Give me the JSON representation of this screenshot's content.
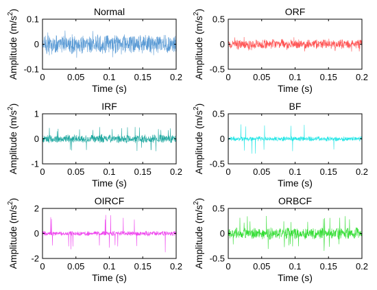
{
  "chart_data": [
    {
      "type": "line",
      "title": "Normal",
      "xlabel": "Time (s)",
      "ylabel": "Amplitude (m/s",
      "ylabel_sup": "2",
      "ylabel_close": ")",
      "xlim": [
        0,
        0.2
      ],
      "ylim": [
        -0.1,
        0.1
      ],
      "x_ticks": [
        0,
        0.05,
        0.1,
        0.15,
        0.2
      ],
      "x_tick_labels": [
        "0",
        "0.05",
        "0.1",
        "0.15",
        "0.2"
      ],
      "y_ticks": [
        -0.1,
        0,
        0.1
      ],
      "y_tick_labels": [
        "-0.1",
        "0",
        "0.1"
      ],
      "grid": false,
      "series": [
        {
          "color": "#5b9bd5",
          "amplitude": 0.04,
          "spike_amplitude": 0.055
        }
      ]
    },
    {
      "type": "line",
      "title": "ORF",
      "xlabel": "Time (s)",
      "ylabel": "Amplitude (m/s",
      "ylabel_sup": "2",
      "ylabel_close": ")",
      "xlim": [
        0,
        0.2
      ],
      "ylim": [
        -0.5,
        0.5
      ],
      "x_ticks": [
        0,
        0.05,
        0.1,
        0.15,
        0.2
      ],
      "x_tick_labels": [
        "0",
        "0.05",
        "0.1",
        "0.15",
        "0.2"
      ],
      "y_ticks": [
        -0.5,
        0,
        0.5
      ],
      "y_tick_labels": [
        "-0.5",
        "0",
        "0.5"
      ],
      "grid": false,
      "series": [
        {
          "color": "#ff5555",
          "amplitude": 0.1,
          "spike_amplitude": 0.15
        }
      ]
    },
    {
      "type": "line",
      "title": "IRF",
      "xlabel": "Time (s)",
      "ylabel": "Amplitude (m/s",
      "ylabel_sup": "2",
      "ylabel_close": ")",
      "xlim": [
        0,
        0.2
      ],
      "ylim": [
        -1,
        1
      ],
      "x_ticks": [
        0,
        0.05,
        0.1,
        0.15,
        0.2
      ],
      "x_tick_labels": [
        "0",
        "0.05",
        "0.1",
        "0.15",
        "0.2"
      ],
      "y_ticks": [
        -1,
        0,
        1
      ],
      "y_tick_labels": [
        "-1",
        "0",
        "1"
      ],
      "grid": false,
      "series": [
        {
          "color": "#1fa8a0",
          "amplitude": 0.18,
          "spike_amplitude": 0.5
        }
      ]
    },
    {
      "type": "line",
      "title": "BF",
      "xlabel": "Time (s)",
      "ylabel": "Amplitude (m/s",
      "ylabel_sup": "2",
      "ylabel_close": ")",
      "xlim": [
        0,
        0.2
      ],
      "ylim": [
        -0.5,
        0.5
      ],
      "x_ticks": [
        0,
        0.05,
        0.1,
        0.15,
        0.2
      ],
      "x_tick_labels": [
        "0",
        "0.05",
        "0.1",
        "0.15",
        "0.2"
      ],
      "y_ticks": [
        -0.5,
        0,
        0.5
      ],
      "y_tick_labels": [
        "-0.5",
        "0",
        "0.5"
      ],
      "grid": false,
      "series": [
        {
          "color": "#22e6e6",
          "amplitude": 0.05,
          "spike_amplitude": 0.3
        }
      ]
    },
    {
      "type": "line",
      "title": "OIRCF",
      "xlabel": "Time (s)",
      "ylabel": "Amplitude (m/s",
      "ylabel_sup": "2",
      "ylabel_close": ")",
      "xlim": [
        0,
        0.2
      ],
      "ylim": [
        -2,
        2
      ],
      "x_ticks": [
        0,
        0.05,
        0.1,
        0.15,
        0.2
      ],
      "x_tick_labels": [
        "0",
        "0.05",
        "0.1",
        "0.15",
        "0.2"
      ],
      "y_ticks": [
        -2,
        0,
        2
      ],
      "y_tick_labels": [
        "-2",
        "0",
        "2"
      ],
      "grid": false,
      "series": [
        {
          "color": "#ee44ee",
          "amplitude": 0.2,
          "spike_amplitude": 1.5
        }
      ]
    },
    {
      "type": "line",
      "title": "ORBCF",
      "xlabel": "Time (s)",
      "ylabel": "Amplitude (m/s",
      "ylabel_sup": "2",
      "ylabel_close": ")",
      "xlim": [
        0,
        0.2
      ],
      "ylim": [
        -0.5,
        0.5
      ],
      "x_ticks": [
        0,
        0.05,
        0.1,
        0.15,
        0.2
      ],
      "x_tick_labels": [
        "0",
        "0.05",
        "0.1",
        "0.15",
        "0.2"
      ],
      "y_ticks": [
        -0.5,
        0,
        0.5
      ],
      "y_tick_labels": [
        "-0.5",
        "0",
        "0.5"
      ],
      "grid": false,
      "series": [
        {
          "color": "#33dd33",
          "amplitude": 0.12,
          "spike_amplitude": 0.35
        }
      ]
    }
  ]
}
